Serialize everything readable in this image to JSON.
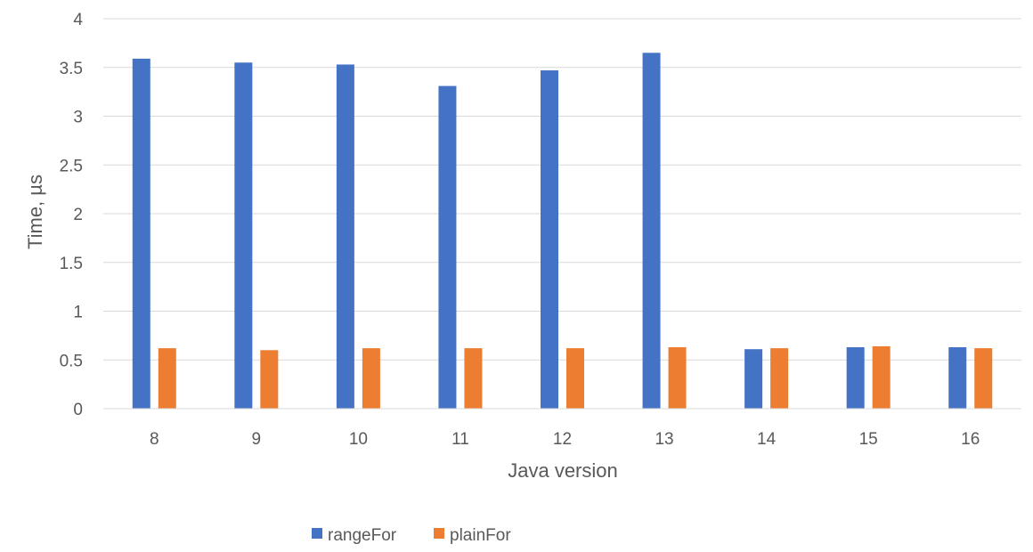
{
  "chart_data": {
    "type": "bar",
    "title": "",
    "xlabel": "Java version",
    "ylabel": "Time, µs",
    "categories": [
      "8",
      "9",
      "10",
      "11",
      "12",
      "13",
      "14",
      "15",
      "16"
    ],
    "ylim": [
      0,
      4
    ],
    "yticks": [
      "0",
      "0.5",
      "1",
      "1.5",
      "2",
      "2.5",
      "3",
      "3.5",
      "4"
    ],
    "grid": true,
    "legend_position": "bottom",
    "series": [
      {
        "name": "rangeFor",
        "color": "#4472C4",
        "values": [
          3.59,
          3.55,
          3.53,
          3.31,
          3.47,
          3.65,
          0.61,
          0.63,
          0.63
        ]
      },
      {
        "name": "plainFor",
        "color": "#ED7D31",
        "values": [
          0.62,
          0.6,
          0.62,
          0.62,
          0.62,
          0.63,
          0.62,
          0.64,
          0.62
        ]
      }
    ]
  }
}
